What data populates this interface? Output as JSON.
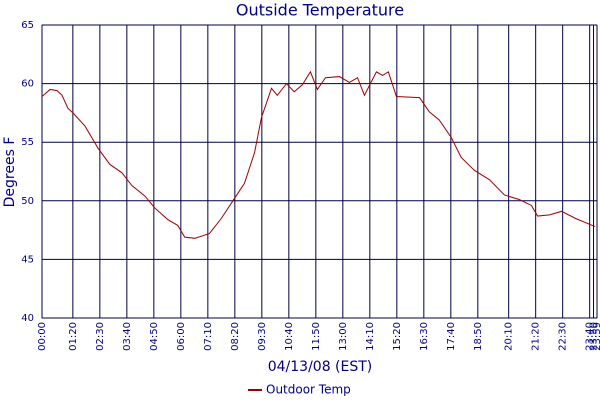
{
  "chart_data": {
    "type": "line",
    "title": "Outside Temperature",
    "y_label": "Degrees F",
    "x_label": "04/13/08 (EST)",
    "x": [
      0,
      21,
      39,
      52,
      67,
      80,
      111,
      145,
      176,
      207,
      233,
      267,
      292,
      326,
      352,
      370,
      396,
      434,
      465,
      499,
      525,
      551,
      569,
      595,
      610,
      634,
      654,
      675,
      696,
      714,
      735,
      771,
      797,
      818,
      836,
      867,
      883,
      898,
      919,
      979,
      1004,
      1030,
      1061,
      1087,
      1121,
      1160,
      1199,
      1238,
      1269,
      1285,
      1316,
      1347,
      1383,
      1434
    ],
    "series": [
      {
        "name": "Outdoor Temp",
        "color": "#a00000",
        "values": [
          58.9,
          59.5,
          59.4,
          59.0,
          57.9,
          57.5,
          56.4,
          54.5,
          53.1,
          52.4,
          51.3,
          50.4,
          49.4,
          48.4,
          47.9,
          46.9,
          46.8,
          47.2,
          48.5,
          50.2,
          51.5,
          54.1,
          57.1,
          59.6,
          59.0,
          60.0,
          59.3,
          59.9,
          61.0,
          59.5,
          60.5,
          60.6,
          60.1,
          60.5,
          59.0,
          61.0,
          60.7,
          61.0,
          58.9,
          58.8,
          57.6,
          56.9,
          55.4,
          53.7,
          52.6,
          51.8,
          50.5,
          50.1,
          49.6,
          48.7,
          48.8,
          49.1,
          48.5,
          47.8
        ]
      }
    ],
    "xlim": [
      0,
      1439
    ],
    "xticks": [
      {
        "value": 0,
        "label": "00:00"
      },
      {
        "value": 80,
        "label": "01:20"
      },
      {
        "value": 150,
        "label": "02:30"
      },
      {
        "value": 220,
        "label": "03:40"
      },
      {
        "value": 290,
        "label": "04:50"
      },
      {
        "value": 360,
        "label": "06:00"
      },
      {
        "value": 430,
        "label": "07:10"
      },
      {
        "value": 500,
        "label": "08:20"
      },
      {
        "value": 570,
        "label": "09:30"
      },
      {
        "value": 640,
        "label": "10:40"
      },
      {
        "value": 710,
        "label": "11:50"
      },
      {
        "value": 780,
        "label": "13:00"
      },
      {
        "value": 850,
        "label": "14:10"
      },
      {
        "value": 920,
        "label": "15:20"
      },
      {
        "value": 990,
        "label": "16:30"
      },
      {
        "value": 1060,
        "label": "17:40"
      },
      {
        "value": 1130,
        "label": "18:50"
      },
      {
        "value": 1210,
        "label": "20:10"
      },
      {
        "value": 1280,
        "label": "21:20"
      },
      {
        "value": 1350,
        "label": "22:30"
      },
      {
        "value": 1420,
        "label": "23:40"
      },
      {
        "value": 1430,
        "label": "23:50"
      },
      {
        "value": 1439,
        "label": "23:59"
      }
    ],
    "ylim": [
      40,
      65
    ],
    "yticks": [
      40,
      45,
      50,
      55,
      60,
      65
    ],
    "grid": true
  }
}
